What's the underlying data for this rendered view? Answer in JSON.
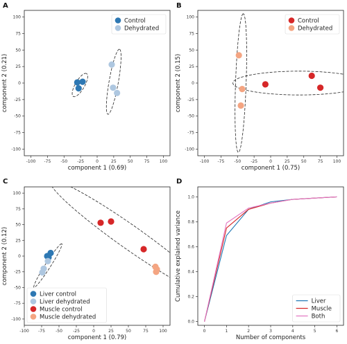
{
  "chart_data": [
    {
      "panel": "A",
      "type": "scatter",
      "xlabel": "component 1 (0.69)",
      "ylabel": "component 2 (0.21)",
      "xlim": [
        -110,
        110
      ],
      "ylim": [
        -110,
        110
      ],
      "xticks": [
        -100,
        -75,
        -50,
        -25,
        0,
        25,
        50,
        75,
        100
      ],
      "yticks": [
        -100,
        -75,
        -50,
        -25,
        0,
        25,
        50,
        75,
        100
      ],
      "legend": "top-right",
      "series": [
        {
          "name": "Control",
          "color": "#2e78b3",
          "points": [
            [
              -28,
              -8
            ],
            [
              -22,
              2
            ],
            [
              -30,
              1
            ]
          ]
        },
        {
          "name": "Dehydrated",
          "color": "#aec7e0",
          "points": [
            [
              22,
              28
            ],
            [
              24,
              -7
            ],
            [
              30,
              -15
            ]
          ]
        }
      ],
      "ellipses": [
        {
          "cx": -26,
          "cy": -3,
          "rx": 20,
          "ry": 7,
          "angle": 60
        },
        {
          "cx": 25,
          "cy": 2,
          "rx": 50,
          "ry": 7,
          "angle": 80
        }
      ]
    },
    {
      "panel": "B",
      "type": "scatter",
      "xlabel": "component 1 (0.75)",
      "ylabel": "component 2 (0.15)",
      "xlim": [
        -110,
        110
      ],
      "ylim": [
        -110,
        110
      ],
      "xticks": [
        -100,
        -75,
        -50,
        -25,
        0,
        25,
        50,
        75,
        100
      ],
      "yticks": [
        -100,
        -75,
        -50,
        -25,
        0,
        25,
        50,
        75,
        100
      ],
      "legend": "top-right",
      "series": [
        {
          "name": "Control",
          "color": "#d62728",
          "points": [
            [
              -8,
              -2
            ],
            [
              62,
              11
            ],
            [
              75,
              -7
            ]
          ]
        },
        {
          "name": "Dehydrated",
          "color": "#f4a582",
          "points": [
            [
              -48,
              42
            ],
            [
              -43,
              -9
            ],
            [
              -45,
              -34
            ]
          ]
        }
      ],
      "ellipses": [
        {
          "cx": 43,
          "cy": 0,
          "rx": 100,
          "ry": 18,
          "angle": 0
        },
        {
          "cx": -45,
          "cy": 0,
          "rx": 105,
          "ry": 8,
          "angle": 88
        }
      ]
    },
    {
      "panel": "C",
      "type": "scatter",
      "xlabel": "component 1 (0.79)",
      "ylabel": "component 2 (0.12)",
      "xlim": [
        -100,
        110
      ],
      "ylim": [
        -110,
        110
      ],
      "xticks": [
        -100,
        -75,
        -50,
        -25,
        0,
        25,
        50,
        75,
        100
      ],
      "yticks": [
        -100,
        -75,
        -50,
        -25,
        0,
        25,
        50,
        75,
        100
      ],
      "legend": "bottom-left",
      "series": [
        {
          "name": "Liver control",
          "color": "#2e78b3",
          "points": [
            [
              -62,
              5
            ],
            [
              -65,
              -2
            ],
            [
              -67,
              0
            ]
          ]
        },
        {
          "name": "Liver dehydrated",
          "color": "#aec7e0",
          "points": [
            [
              -72,
              -20
            ],
            [
              -74,
              -26
            ],
            [
              -66,
              -8
            ]
          ]
        },
        {
          "name": "Muscle control",
          "color": "#d62728",
          "points": [
            [
              10,
              53
            ],
            [
              25,
              55
            ],
            [
              72,
              11
            ]
          ]
        },
        {
          "name": "Muscle dehydrated",
          "color": "#f4a582",
          "points": [
            [
              89,
              -17
            ],
            [
              91,
              -21
            ],
            [
              90,
              -25
            ]
          ]
        }
      ],
      "ellipses": [
        {
          "cx": -66,
          "cy": -15,
          "rx": 40,
          "ry": 4,
          "angle": 60
        },
        {
          "cx": 52,
          "cy": 30,
          "rx": 145,
          "ry": 18,
          "angle": -38
        }
      ]
    },
    {
      "panel": "D",
      "type": "line",
      "xlabel": "Number of components",
      "ylabel": "Cumulative explained variance",
      "xlim": [
        -0.3,
        6.3
      ],
      "ylim": [
        -0.03,
        1.08
      ],
      "xticks": [
        0,
        1,
        2,
        3,
        4,
        5,
        6
      ],
      "yticks": [
        0.0,
        0.2,
        0.4,
        0.6,
        0.8,
        1.0
      ],
      "legend": "bottom-right",
      "x": [
        0,
        1,
        2,
        3,
        4,
        5,
        6
      ],
      "series": [
        {
          "name": "Liver",
          "color": "#1f77b4",
          "values": [
            0,
            0.69,
            0.9,
            0.96,
            0.98,
            0.99,
            1.0
          ]
        },
        {
          "name": "Muscle",
          "color": "#d62728",
          "values": [
            0,
            0.75,
            0.9,
            0.95,
            0.98,
            0.99,
            1.0
          ]
        },
        {
          "name": "Both",
          "color": "#e377c2",
          "values": [
            0,
            0.79,
            0.91,
            0.95,
            0.98,
            0.99,
            1.0
          ]
        }
      ]
    }
  ]
}
